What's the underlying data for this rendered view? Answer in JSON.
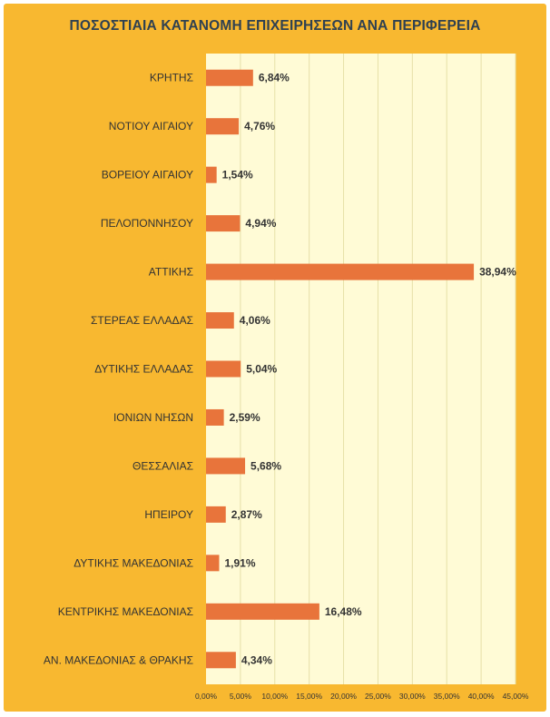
{
  "chart_data": {
    "type": "bar",
    "orientation": "horizontal",
    "title": "ΠΟΣΟΣΤΙΑΙΑ ΚΑΤΑΝΟΜΗ ΕΠΙΧΕΙΡΗΣΕΩΝ ΑΝΑ ΠΕΡΙΦΕΡΕΙΑ",
    "categories": [
      "ΚΡΗΤΗΣ",
      "ΝΟΤΙΟΥ ΑΙΓΑΙΟΥ",
      "ΒΟΡΕΙΟΥ ΑΙΓΑΙΟΥ",
      "ΠΕΛΟΠΟΝΝΗΣΟΥ",
      "ΑΤΤΙΚΗΣ",
      "ΣΤΕΡΕΑΣ ΕΛΛΑΔΑΣ",
      "ΔΥΤΙΚΗΣ ΕΛΛΑΔΑΣ",
      "ΙΟΝΙΩΝ ΝΗΣΩΝ",
      "ΘΕΣΣΑΛΙΑΣ",
      "ΗΠΕΙΡΟΥ",
      "ΔΥΤΙΚΗΣ ΜΑΚΕΔΟΝΙΑΣ",
      "ΚΕΝΤΡΙΚΗΣ ΜΑΚΕΔΟΝΙΑΣ",
      "ΑΝ. ΜΑΚΕΔΟΝΙΑΣ & ΘΡΑΚΗΣ"
    ],
    "values": [
      6.84,
      4.76,
      1.54,
      4.94,
      38.94,
      4.06,
      5.04,
      2.59,
      5.68,
      2.87,
      1.91,
      16.48,
      4.34
    ],
    "value_labels": [
      "6,84%",
      "4,76%",
      "1,54%",
      "4,94%",
      "38,94%",
      "4,06%",
      "5,04%",
      "2,59%",
      "5,68%",
      "2,87%",
      "1,91%",
      "16,48%",
      "4,34%"
    ],
    "xlim": [
      0,
      45
    ],
    "x_ticks": [
      0,
      5,
      10,
      15,
      20,
      25,
      30,
      35,
      40,
      45
    ],
    "x_tick_labels": [
      "0,00%",
      "5,00%",
      "10,00%",
      "15,00%",
      "20,00%",
      "25,00%",
      "30,00%",
      "35,00%",
      "40,00%",
      "45,00%"
    ],
    "xlabel": "",
    "ylabel": "",
    "grid": "vertical",
    "legend": "none",
    "colors": {
      "frame": "#f8b830",
      "plot_area": "#fffbd6",
      "bar": "#e8743b",
      "grid": "#e6e0a8",
      "title": "#2f4151",
      "text": "#333333"
    }
  }
}
